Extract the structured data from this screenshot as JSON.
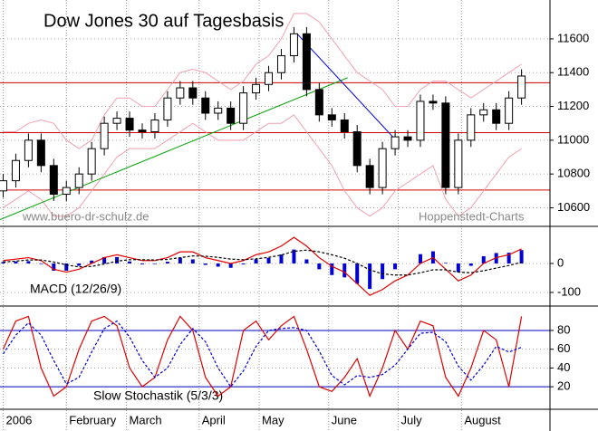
{
  "chart_data": [
    {
      "type": "candlestick",
      "title": "Dow Jones 30 auf Tagesbasis",
      "annotations": [
        "www.buero-dr-schulz.de",
        "Hoppenstedt-Charts"
      ],
      "x": [
        0,
        4,
        8,
        12,
        16,
        20,
        24,
        28,
        32,
        36,
        40,
        44,
        48,
        52,
        56,
        60,
        64,
        68,
        72,
        76,
        80,
        84,
        88,
        92,
        96,
        100,
        104,
        108,
        112,
        116,
        120,
        124,
        128,
        132,
        136,
        140,
        144,
        148,
        152,
        156,
        160,
        164
      ],
      "open": [
        10700,
        10760,
        10880,
        11000,
        10850,
        10680,
        10720,
        10800,
        10950,
        11100,
        11130,
        11060,
        11050,
        11120,
        11250,
        11310,
        11250,
        11160,
        11190,
        11100,
        11280,
        11330,
        11400,
        11500,
        11630,
        11300,
        11150,
        11120,
        11050,
        10850,
        10720,
        10950,
        11020,
        11000,
        11230,
        11220,
        10720,
        11000,
        11150,
        11180,
        11100,
        11250
      ],
      "high": [
        10800,
        10920,
        11040,
        11040,
        10890,
        10760,
        10840,
        10990,
        11140,
        11170,
        11170,
        11100,
        11160,
        11290,
        11350,
        11350,
        11290,
        11230,
        11230,
        11320,
        11370,
        11440,
        11540,
        11670,
        11670,
        11340,
        11190,
        11160,
        11090,
        10890,
        10990,
        11060,
        11060,
        11270,
        11270,
        11260,
        11040,
        11190,
        11220,
        11220,
        11290,
        11420
      ],
      "low": [
        10660,
        10720,
        10840,
        10810,
        10640,
        10640,
        10680,
        10760,
        10910,
        11060,
        11020,
        11010,
        11010,
        11080,
        11210,
        11210,
        11120,
        11120,
        11060,
        11060,
        11240,
        11290,
        11360,
        11460,
        11260,
        11110,
        11080,
        11010,
        10810,
        10680,
        10680,
        10910,
        10960,
        10960,
        11180,
        10680,
        10680,
        10960,
        11110,
        11060,
        11060,
        11210
      ],
      "close": [
        10760,
        10880,
        11000,
        10850,
        10680,
        10720,
        10800,
        10950,
        11100,
        11130,
        11060,
        11050,
        11120,
        11250,
        11310,
        11250,
        11160,
        11190,
        11100,
        11280,
        11330,
        11400,
        11500,
        11630,
        11300,
        11150,
        11120,
        11050,
        10850,
        10720,
        10950,
        11020,
        11000,
        11230,
        11220,
        10720,
        11000,
        11150,
        11180,
        11100,
        11250,
        11380
      ],
      "bands": {
        "color": "#f4a0b0",
        "upper": [
          11050,
          11050,
          11100,
          11120,
          11100,
          11000,
          10950,
          11000,
          11150,
          11250,
          11250,
          11200,
          11200,
          11300,
          11400,
          11420,
          11400,
          11350,
          11300,
          11350,
          11450,
          11500,
          11600,
          11750,
          11750,
          11700,
          11600,
          11500,
          11400,
          11350,
          11300,
          11200,
          11200,
          11300,
          11350,
          11350,
          11300,
          11250,
          11300,
          11350,
          11400,
          11450
        ],
        "lower": [
          10600,
          10650,
          10700,
          10650,
          10550,
          10550,
          10600,
          10700,
          10800,
          10900,
          10950,
          10950,
          10950,
          11000,
          11050,
          11100,
          11050,
          11000,
          11000,
          11000,
          11050,
          11100,
          11100,
          11150,
          11050,
          10950,
          10850,
          10700,
          10600,
          10550,
          10600,
          10700,
          10750,
          10800,
          10850,
          10650,
          10550,
          10600,
          10700,
          10800,
          10900,
          10950
        ]
      },
      "levels": {
        "color": "#d00000",
        "values": [
          11340,
          11045,
          10705
        ]
      },
      "trendlines": [
        {
          "color": "#00a000",
          "x": [
            -1,
            109
          ],
          "y": [
            10530,
            11370
          ]
        },
        {
          "color": "#0000e0",
          "x": [
            93,
            125
          ],
          "y": [
            11630,
            10985
          ]
        }
      ],
      "ylim": [
        10490,
        11830
      ],
      "yticks": [
        10600,
        10800,
        11000,
        11200,
        11400,
        11600
      ],
      "grid": true
    },
    {
      "type": "line",
      "title": "MACD (12/26/9)",
      "x": [
        0,
        4,
        8,
        12,
        16,
        20,
        24,
        28,
        32,
        36,
        40,
        44,
        48,
        52,
        56,
        60,
        64,
        68,
        72,
        76,
        80,
        84,
        88,
        92,
        96,
        100,
        104,
        108,
        112,
        116,
        120,
        124,
        128,
        132,
        136,
        140,
        144,
        148,
        152,
        156,
        160,
        164
      ],
      "series": [
        {
          "color": "#e00000",
          "dashed": false,
          "values": [
            10,
            15,
            20,
            10,
            -20,
            -30,
            -20,
            0,
            20,
            30,
            20,
            10,
            10,
            20,
            40,
            40,
            20,
            10,
            0,
            10,
            30,
            40,
            60,
            90,
            60,
            20,
            -10,
            -30,
            -70,
            -110,
            -90,
            -60,
            -40,
            0,
            20,
            -20,
            -60,
            -40,
            0,
            20,
            30,
            50
          ]
        },
        {
          "color": "#000000",
          "dashed": true,
          "values": [
            5,
            8,
            12,
            12,
            5,
            -5,
            -12,
            -10,
            -2,
            8,
            13,
            13,
            12,
            14,
            20,
            26,
            25,
            21,
            15,
            13,
            16,
            21,
            29,
            42,
            46,
            40,
            30,
            18,
            0,
            -22,
            -36,
            -40,
            -40,
            -32,
            -22,
            -22,
            -30,
            -32,
            -25,
            -16,
            -7,
            4
          ]
        }
      ],
      "bars": {
        "color": "#0000d0",
        "values": [
          5,
          7,
          8,
          -2,
          -25,
          -25,
          -8,
          10,
          22,
          22,
          7,
          -3,
          -2,
          6,
          20,
          14,
          -5,
          -11,
          -15,
          -3,
          14,
          19,
          31,
          48,
          14,
          -20,
          -40,
          -48,
          -70,
          -88,
          -54,
          -20,
          0,
          32,
          42,
          2,
          -30,
          -8,
          25,
          36,
          37,
          46
        ]
      },
      "ylim": [
        -147,
        128
      ],
      "yticks": [
        0,
        -100
      ]
    },
    {
      "type": "line",
      "title": "Slow Stochastik (5/3/3)",
      "x": [
        0,
        4,
        8,
        12,
        16,
        20,
        24,
        28,
        32,
        36,
        40,
        44,
        48,
        52,
        56,
        60,
        64,
        68,
        72,
        76,
        80,
        84,
        88,
        92,
        96,
        100,
        104,
        108,
        112,
        116,
        120,
        124,
        128,
        132,
        136,
        140,
        144,
        148,
        152,
        156,
        160,
        164
      ],
      "series": [
        {
          "color": "#e00000",
          "dashed": false,
          "values": [
            60,
            90,
            95,
            40,
            10,
            20,
            60,
            90,
            95,
            85,
            40,
            20,
            30,
            70,
            95,
            80,
            30,
            10,
            20,
            80,
            90,
            70,
            85,
            95,
            60,
            20,
            15,
            30,
            50,
            10,
            40,
            80,
            60,
            90,
            85,
            30,
            10,
            40,
            80,
            70,
            20,
            95
          ]
        },
        {
          "color": "#0000e0",
          "dashed": true,
          "values": [
            55,
            75,
            88,
            75,
            48,
            23,
            30,
            57,
            82,
            90,
            73,
            48,
            30,
            40,
            65,
            82,
            68,
            40,
            20,
            37,
            63,
            80,
            82,
            83,
            80,
            58,
            32,
            22,
            32,
            30,
            33,
            43,
            60,
            77,
            78,
            68,
            42,
            27,
            43,
            63,
            57,
            62
          ]
        }
      ],
      "levels": {
        "color": "#0000c0",
        "values": [
          80,
          20
        ]
      },
      "ylim": [
        -4,
        106
      ],
      "yticks": [
        20,
        40,
        60,
        80
      ],
      "xlim": [
        -1,
        173
      ],
      "xticks": [
        {
          "value": 0,
          "label": "2006"
        },
        {
          "value": 20,
          "label": "February"
        },
        {
          "value": 39,
          "label": "March"
        },
        {
          "value": 62,
          "label": "April"
        },
        {
          "value": 81,
          "label": "May"
        },
        {
          "value": 103,
          "label": "June"
        },
        {
          "value": 125,
          "label": "July"
        },
        {
          "value": 145,
          "label": "August"
        }
      ]
    }
  ]
}
